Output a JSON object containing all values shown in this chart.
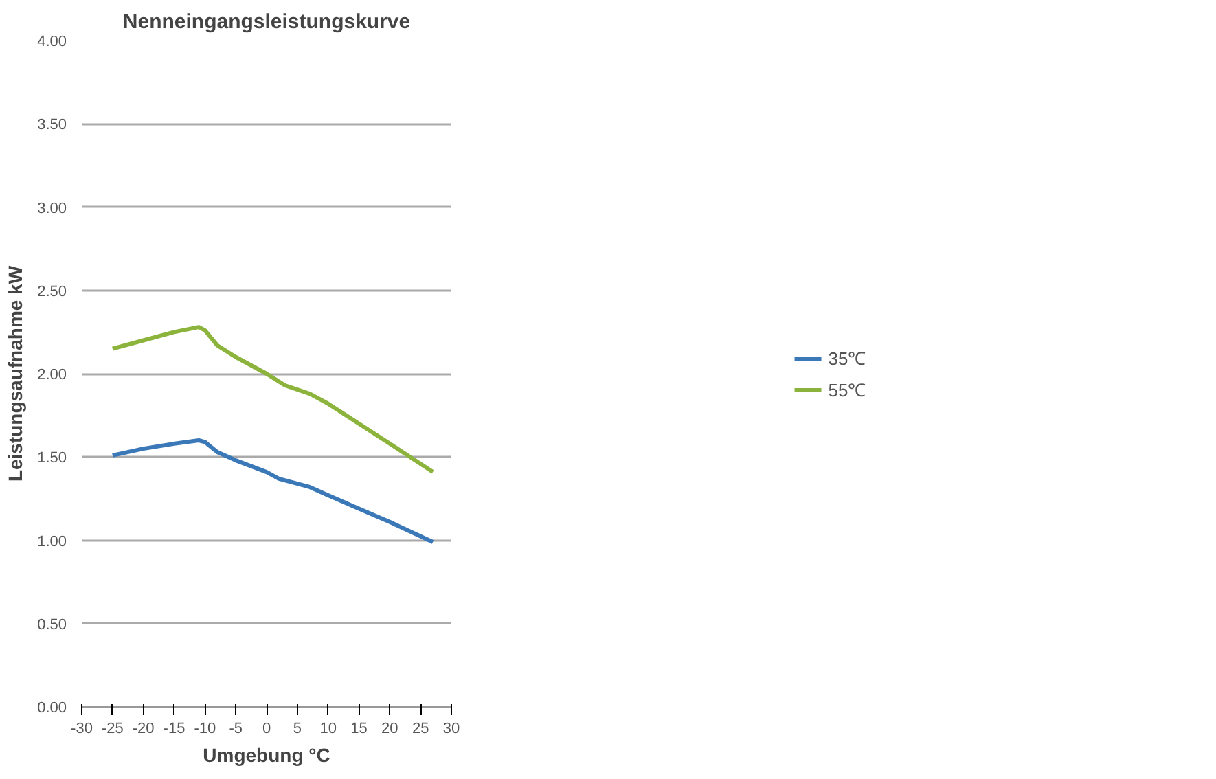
{
  "chart_data": {
    "type": "line",
    "title": "Nenneingangsleistungskurve",
    "xlabel": "Umgebung °C",
    "ylabel": "Leistungsaufnahme kW",
    "xlim": [
      -30,
      30
    ],
    "xticks": [
      -30,
      -25,
      -20,
      -15,
      -10,
      -5,
      0,
      5,
      10,
      15,
      20,
      25,
      30
    ],
    "ylim": [
      0,
      4
    ],
    "yticks": [
      {
        "value": 0,
        "label": "0.00"
      },
      {
        "value": 0.5,
        "label": "0.50"
      },
      {
        "value": 1,
        "label": "1.00"
      },
      {
        "value": 1.5,
        "label": "1.50"
      },
      {
        "value": 2,
        "label": "2.00"
      },
      {
        "value": 2.5,
        "label": "2.50"
      },
      {
        "value": 3,
        "label": "3.00"
      },
      {
        "value": 3.5,
        "label": "3.50"
      },
      {
        "value": 4,
        "label": "4.00"
      }
    ],
    "grid": "y",
    "legend": "right",
    "marker": "none",
    "series": [
      {
        "name": "35℃",
        "color": "#3a78b8",
        "x": [
          -25,
          -20,
          -15,
          -11,
          -10,
          -8,
          -5,
          0,
          2,
          7,
          10,
          15,
          20,
          27
        ],
        "values": [
          1.51,
          1.55,
          1.58,
          1.6,
          1.59,
          1.53,
          1.48,
          1.41,
          1.37,
          1.32,
          1.27,
          1.19,
          1.11,
          0.99
        ]
      },
      {
        "name": "55℃",
        "color": "#8cb43c",
        "x": [
          -25,
          -20,
          -15,
          -11,
          -10,
          -8,
          -5,
          0,
          3,
          7,
          10,
          15,
          20,
          27
        ],
        "values": [
          2.15,
          2.2,
          2.25,
          2.28,
          2.26,
          2.17,
          2.1,
          2.0,
          1.93,
          1.88,
          1.82,
          1.7,
          1.58,
          1.41
        ]
      }
    ]
  }
}
